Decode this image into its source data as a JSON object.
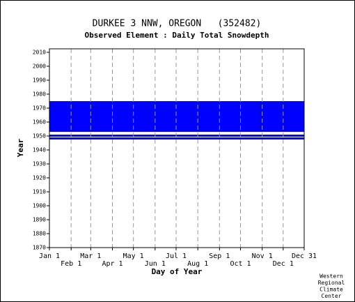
{
  "chart_data": {
    "type": "availability",
    "title": "DURKEE 3 NNW, OREGON   (352482)",
    "subtitle": "Observed Element : Daily Total Snowdepth",
    "x_label": "Day of Year",
    "y_label": "Year",
    "credit": [
      "Western",
      "Regional",
      "Climate",
      "Center"
    ],
    "color": "#0000ff",
    "xlim": [
      1,
      365
    ],
    "ylim": [
      1870,
      2012.5
    ],
    "xticks": [
      {
        "value": 1,
        "label": "Jan 1"
      },
      {
        "value": 32,
        "label": "Feb 1"
      },
      {
        "value": 60,
        "label": "Mar 1"
      },
      {
        "value": 91,
        "label": "Apr 1"
      },
      {
        "value": 121,
        "label": "May 1"
      },
      {
        "value": 152,
        "label": "Jun 1"
      },
      {
        "value": 182,
        "label": "Jul 1"
      },
      {
        "value": 213,
        "label": "Aug 1"
      },
      {
        "value": 244,
        "label": "Sep 1"
      },
      {
        "value": 274,
        "label": "Oct 1"
      },
      {
        "value": 305,
        "label": "Nov 1"
      },
      {
        "value": 335,
        "label": "Dec 1"
      },
      {
        "value": 365,
        "label": "Dec 31"
      }
    ],
    "yticks": [
      1870,
      1880,
      1890,
      1900,
      1910,
      1920,
      1930,
      1940,
      1950,
      1960,
      1970,
      1980,
      1990,
      2000,
      2010
    ],
    "grid": true,
    "blocks": [
      {
        "days": [
          1,
          365
        ],
        "years": [
          1953,
          1975
        ]
      },
      {
        "days": [
          1,
          365
        ],
        "years": [
          1949.5,
          1951
        ]
      },
      {
        "days": [
          1,
          365
        ],
        "years": [
          1947.5,
          1949
        ]
      }
    ]
  }
}
